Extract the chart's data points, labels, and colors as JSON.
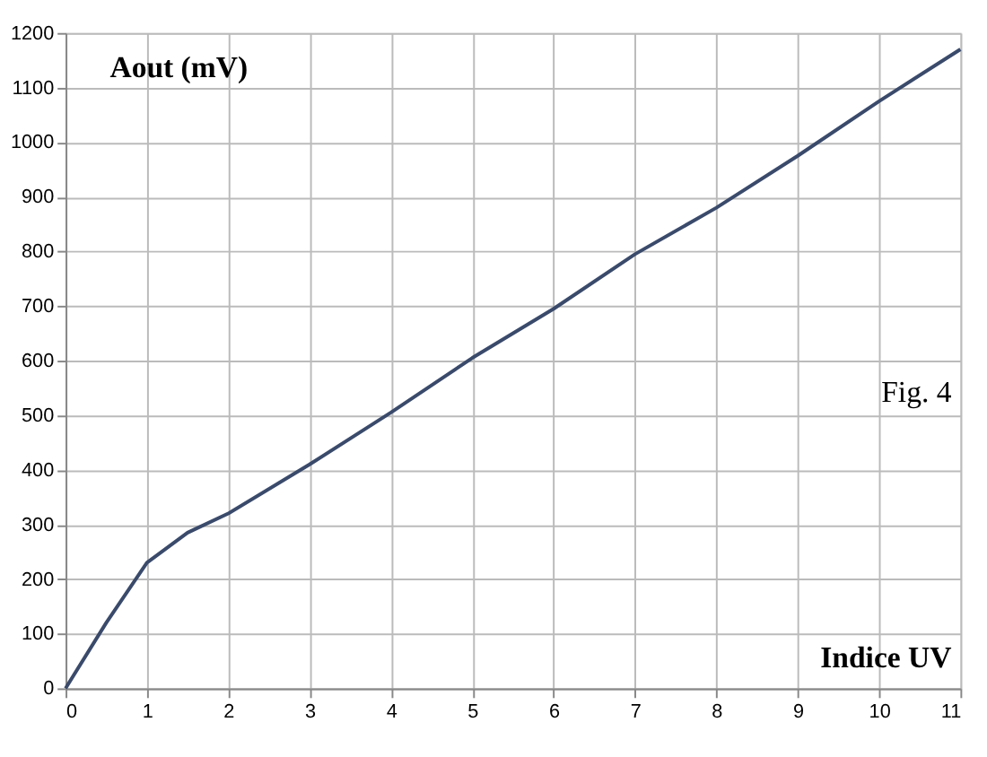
{
  "chart_data": {
    "type": "line",
    "xlabel": "Indice UV",
    "ylabel": "Aout (mV)",
    "annotations": [
      "Fig. 4"
    ],
    "x": [
      0,
      0.5,
      1,
      1.5,
      2,
      3,
      4,
      5,
      6,
      7,
      8,
      9,
      10,
      11
    ],
    "series": [
      {
        "color": "#3a4a6b",
        "values": [
          0,
          120,
          230,
          285,
          320,
          410,
          505,
          605,
          695,
          795,
          880,
          975,
          1075,
          1170
        ]
      }
    ],
    "xlim": [
      0,
      11
    ],
    "xticks": [
      0,
      1,
      2,
      3,
      4,
      5,
      6,
      7,
      8,
      9,
      10,
      11
    ],
    "ylim": [
      0,
      1200
    ],
    "yticks": [
      0,
      100,
      200,
      300,
      400,
      500,
      600,
      700,
      800,
      900,
      1000,
      1100,
      1200
    ],
    "grid": true,
    "marker": "none",
    "line_style": "solid"
  }
}
